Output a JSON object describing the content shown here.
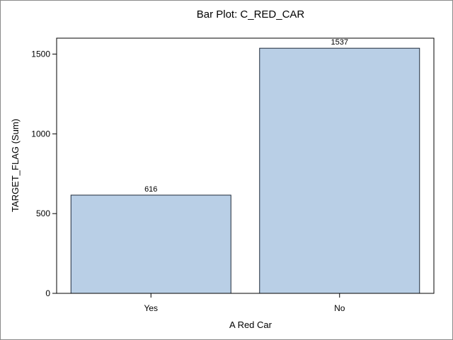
{
  "chart_data": {
    "type": "bar",
    "title": "Bar Plot: C_RED_CAR",
    "xlabel": "A Red Car",
    "ylabel": "TARGET_FLAG (Sum)",
    "categories": [
      "Yes",
      "No"
    ],
    "values": [
      616,
      1537
    ],
    "data_labels": [
      "616",
      "1537"
    ],
    "ylim": [
      0,
      1600
    ],
    "yticks": [
      0,
      500,
      1000,
      1500
    ],
    "grid": false,
    "legend": "none",
    "colors": {
      "bar_fill": "#b9cfe6",
      "bar_stroke": "#1f2a3a",
      "axis": "#000000"
    }
  }
}
